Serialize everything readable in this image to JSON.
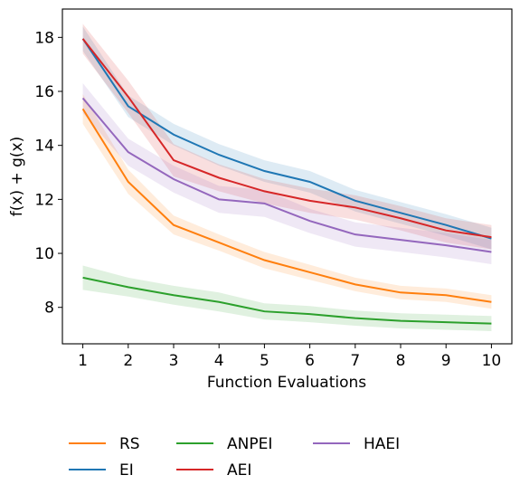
{
  "chart_data": {
    "type": "line",
    "xlabel": "Function Evaluations",
    "ylabel": "f(x) + g(x)",
    "xlim": [
      0.55,
      10.45
    ],
    "ylim": [
      6.65,
      19.05
    ],
    "xticks": [
      1,
      2,
      3,
      4,
      5,
      6,
      7,
      8,
      9,
      10
    ],
    "yticks": [
      8,
      10,
      12,
      14,
      16,
      18
    ],
    "x": [
      1,
      2,
      3,
      4,
      5,
      6,
      7,
      8,
      9,
      10
    ],
    "grid": false,
    "legend_position": "below",
    "series": [
      {
        "name": "RS",
        "color": "#ff7f0e",
        "values": [
          15.35,
          12.65,
          11.05,
          10.4,
          9.75,
          9.3,
          8.85,
          8.55,
          8.45,
          8.2
        ],
        "band": [
          0.55,
          0.45,
          0.35,
          0.3,
          0.3,
          0.28,
          0.25,
          0.25,
          0.25,
          0.25
        ]
      },
      {
        "name": "EI",
        "color": "#1f77b4",
        "values": [
          17.95,
          15.45,
          14.4,
          13.65,
          13.05,
          12.65,
          11.95,
          11.5,
          11.05,
          10.55
        ],
        "band": [
          0.45,
          0.4,
          0.4,
          0.4,
          0.4,
          0.4,
          0.4,
          0.4,
          0.4,
          0.4
        ]
      },
      {
        "name": "ANPEI",
        "color": "#2ca02c",
        "values": [
          9.1,
          8.75,
          8.45,
          8.2,
          7.85,
          7.75,
          7.6,
          7.5,
          7.45,
          7.4
        ],
        "band": [
          0.45,
          0.35,
          0.35,
          0.35,
          0.3,
          0.3,
          0.28,
          0.28,
          0.28,
          0.28
        ]
      },
      {
        "name": "AEI",
        "color": "#d62728",
        "values": [
          17.95,
          15.8,
          13.45,
          12.8,
          12.3,
          11.95,
          11.7,
          11.3,
          10.85,
          10.6
        ],
        "band": [
          0.55,
          0.6,
          0.6,
          0.5,
          0.45,
          0.45,
          0.45,
          0.45,
          0.45,
          0.45
        ]
      },
      {
        "name": "HAEI",
        "color": "#9467bd",
        "values": [
          15.75,
          13.75,
          12.75,
          12.0,
          11.85,
          11.2,
          10.7,
          10.5,
          10.3,
          10.05
        ],
        "band": [
          0.55,
          0.5,
          0.5,
          0.5,
          0.5,
          0.45,
          0.45,
          0.45,
          0.45,
          0.45
        ]
      }
    ]
  }
}
